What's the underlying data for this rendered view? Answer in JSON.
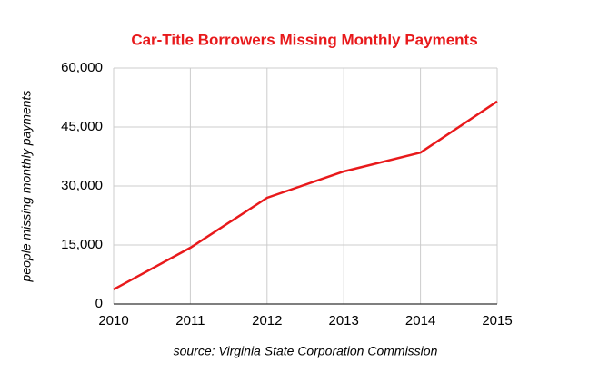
{
  "chart_data": {
    "type": "line",
    "title": "Car-Title Borrowers Missing Monthly Payments",
    "y_label": "people missing monthly payments",
    "source": "source: Virginia State Corporation Commission",
    "x": [
      2010,
      2011,
      2012,
      2013,
      2014,
      2015
    ],
    "values": [
      3700,
      14300,
      27000,
      33700,
      38500,
      51500
    ],
    "color": "#e8191b",
    "xlim": [
      2010,
      2015
    ],
    "xticks": [
      2010,
      2011,
      2012,
      2013,
      2014,
      2015
    ],
    "ylim": [
      0,
      60000
    ],
    "yticks": [
      0,
      {
        "value": 15000,
        "label": "15,000"
      },
      {
        "value": 30000,
        "label": "30,000"
      },
      {
        "value": 45000,
        "label": "45,000"
      },
      {
        "value": 60000,
        "label": "60,000"
      }
    ],
    "grid": true
  }
}
